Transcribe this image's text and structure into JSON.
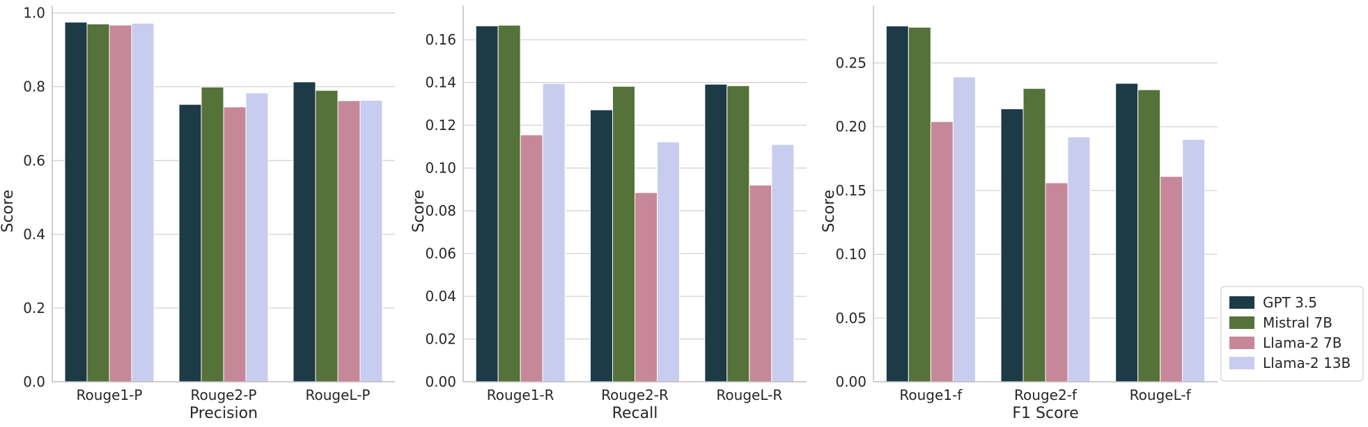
{
  "chart_data": [
    {
      "type": "bar",
      "xlabel": "Precision",
      "ylabel": "Score",
      "categories": [
        "Rouge1-P",
        "Rouge2-P",
        "RougeL-P"
      ],
      "ylim": [
        0,
        1.02
      ],
      "yticks": [
        "0.0",
        "0.2",
        "0.4",
        "0.6",
        "0.8",
        "1.0"
      ],
      "ytick_values": [
        0,
        0.2,
        0.4,
        0.6,
        0.8,
        1.0
      ],
      "grid": "horizontal",
      "series": [
        {
          "name": "GPT 3.5",
          "values": [
            0.975,
            0.752,
            0.813
          ]
        },
        {
          "name": "Mistral 7B",
          "values": [
            0.97,
            0.799,
            0.79
          ]
        },
        {
          "name": "Llama-2 7B",
          "values": [
            0.967,
            0.745,
            0.762
          ]
        },
        {
          "name": "Llama-2 13B",
          "values": [
            0.972,
            0.783,
            0.763
          ]
        }
      ]
    },
    {
      "type": "bar",
      "xlabel": "Recall",
      "ylabel": "Score",
      "categories": [
        "Rouge1-R",
        "Rouge2-R",
        "RougeL-R"
      ],
      "ylim": [
        0,
        0.176
      ],
      "yticks": [
        "0.00",
        "0.02",
        "0.04",
        "0.06",
        "0.08",
        "0.10",
        "0.12",
        "0.14",
        "0.16"
      ],
      "ytick_values": [
        0,
        0.02,
        0.04,
        0.06,
        0.08,
        0.1,
        0.12,
        0.14,
        0.16
      ],
      "grid": "horizontal",
      "series": [
        {
          "name": "GPT 3.5",
          "values": [
            0.1665,
            0.1272,
            0.1392
          ]
        },
        {
          "name": "Mistral 7B",
          "values": [
            0.1668,
            0.1382,
            0.1385
          ]
        },
        {
          "name": "Llama-2 7B",
          "values": [
            0.1155,
            0.0885,
            0.092
          ]
        },
        {
          "name": "Llama-2 13B",
          "values": [
            0.1395,
            0.1122,
            0.111
          ]
        }
      ]
    },
    {
      "type": "bar",
      "xlabel": "F1 Score",
      "ylabel": "Score",
      "categories": [
        "Rouge1-f",
        "Rouge2-f",
        "RougeL-f"
      ],
      "ylim": [
        0,
        0.295
      ],
      "yticks": [
        "0.00",
        "0.05",
        "0.10",
        "0.15",
        "0.20",
        "0.25"
      ],
      "ytick_values": [
        0,
        0.05,
        0.1,
        0.15,
        0.2,
        0.25
      ],
      "grid": "horizontal",
      "series": [
        {
          "name": "GPT 3.5",
          "values": [
            0.279,
            0.214,
            0.234
          ]
        },
        {
          "name": "Mistral 7B",
          "values": [
            0.278,
            0.23,
            0.229
          ]
        },
        {
          "name": "Llama-2 7B",
          "values": [
            0.204,
            0.156,
            0.161
          ]
        },
        {
          "name": "Llama-2 13B",
          "values": [
            0.239,
            0.192,
            0.19
          ]
        }
      ]
    }
  ],
  "legend": {
    "placement": "lower-right",
    "entries": [
      {
        "name": "GPT 3.5",
        "color": "#1d3a47"
      },
      {
        "name": "Mistral 7B",
        "color": "#547239"
      },
      {
        "name": "Llama-2 7B",
        "color": "#c68898"
      },
      {
        "name": "Llama-2 13B",
        "color": "#c8cdef"
      }
    ]
  },
  "colors": {
    "axis": "#bdbdbd",
    "grid": "#cfcfcf",
    "text": "#262626"
  }
}
